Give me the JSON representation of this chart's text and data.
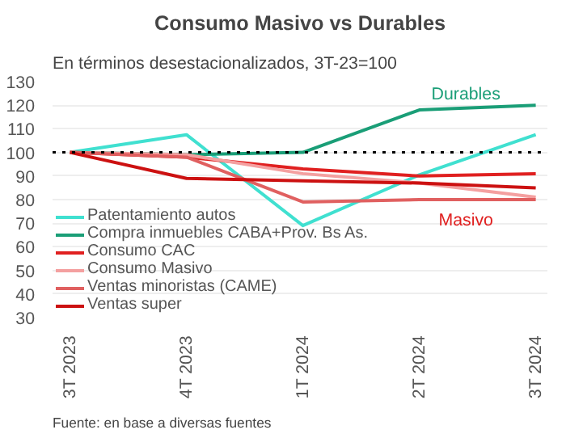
{
  "chart_data": {
    "type": "line",
    "title": "Consumo Masivo vs Durables",
    "subtitle": "En términos desestacionalizados, 3T-23=100",
    "categories": [
      "3T 2023",
      "4T 2023",
      "1T 2024",
      "2T 2024",
      "3T 2024"
    ],
    "series": [
      {
        "name": "Patentamiento autos",
        "color": "#40e0d0",
        "values": [
          100,
          107.5,
          69,
          90.5,
          107.5
        ]
      },
      {
        "name": "Compra inmuebles CABA+Prov. Bs As.",
        "color": "#1a9e77",
        "values": [
          100,
          99,
          100,
          118,
          120
        ]
      },
      {
        "name": "Consumo CAC",
        "color": "#e02020",
        "values": [
          100,
          98,
          93,
          90,
          91
        ]
      },
      {
        "name": "Consumo Masivo",
        "color": "#f4a0a0",
        "values": [
          100,
          99,
          91,
          87,
          81
        ]
      },
      {
        "name": "Ventas minoristas (CAME)",
        "color": "#e06060",
        "values": [
          100,
          98,
          79,
          80,
          80
        ]
      },
      {
        "name": "Ventas super",
        "color": "#cc1111",
        "values": [
          100,
          89,
          88,
          87,
          85
        ]
      }
    ],
    "ylim": [
      30,
      130
    ],
    "yticks": [
      30,
      40,
      50,
      60,
      70,
      80,
      90,
      100,
      110,
      120,
      130
    ],
    "grid": "y",
    "legend": "bottom left",
    "marker": "none",
    "line_style": "solid",
    "ref_lines": [
      {
        "axis": "y",
        "value": 100,
        "label": null,
        "color": "#000000",
        "line_style": "dotted"
      }
    ],
    "annotations": [
      "Durables",
      "Masivo",
      "Fuente: en base a diversas fuentes"
    ]
  }
}
